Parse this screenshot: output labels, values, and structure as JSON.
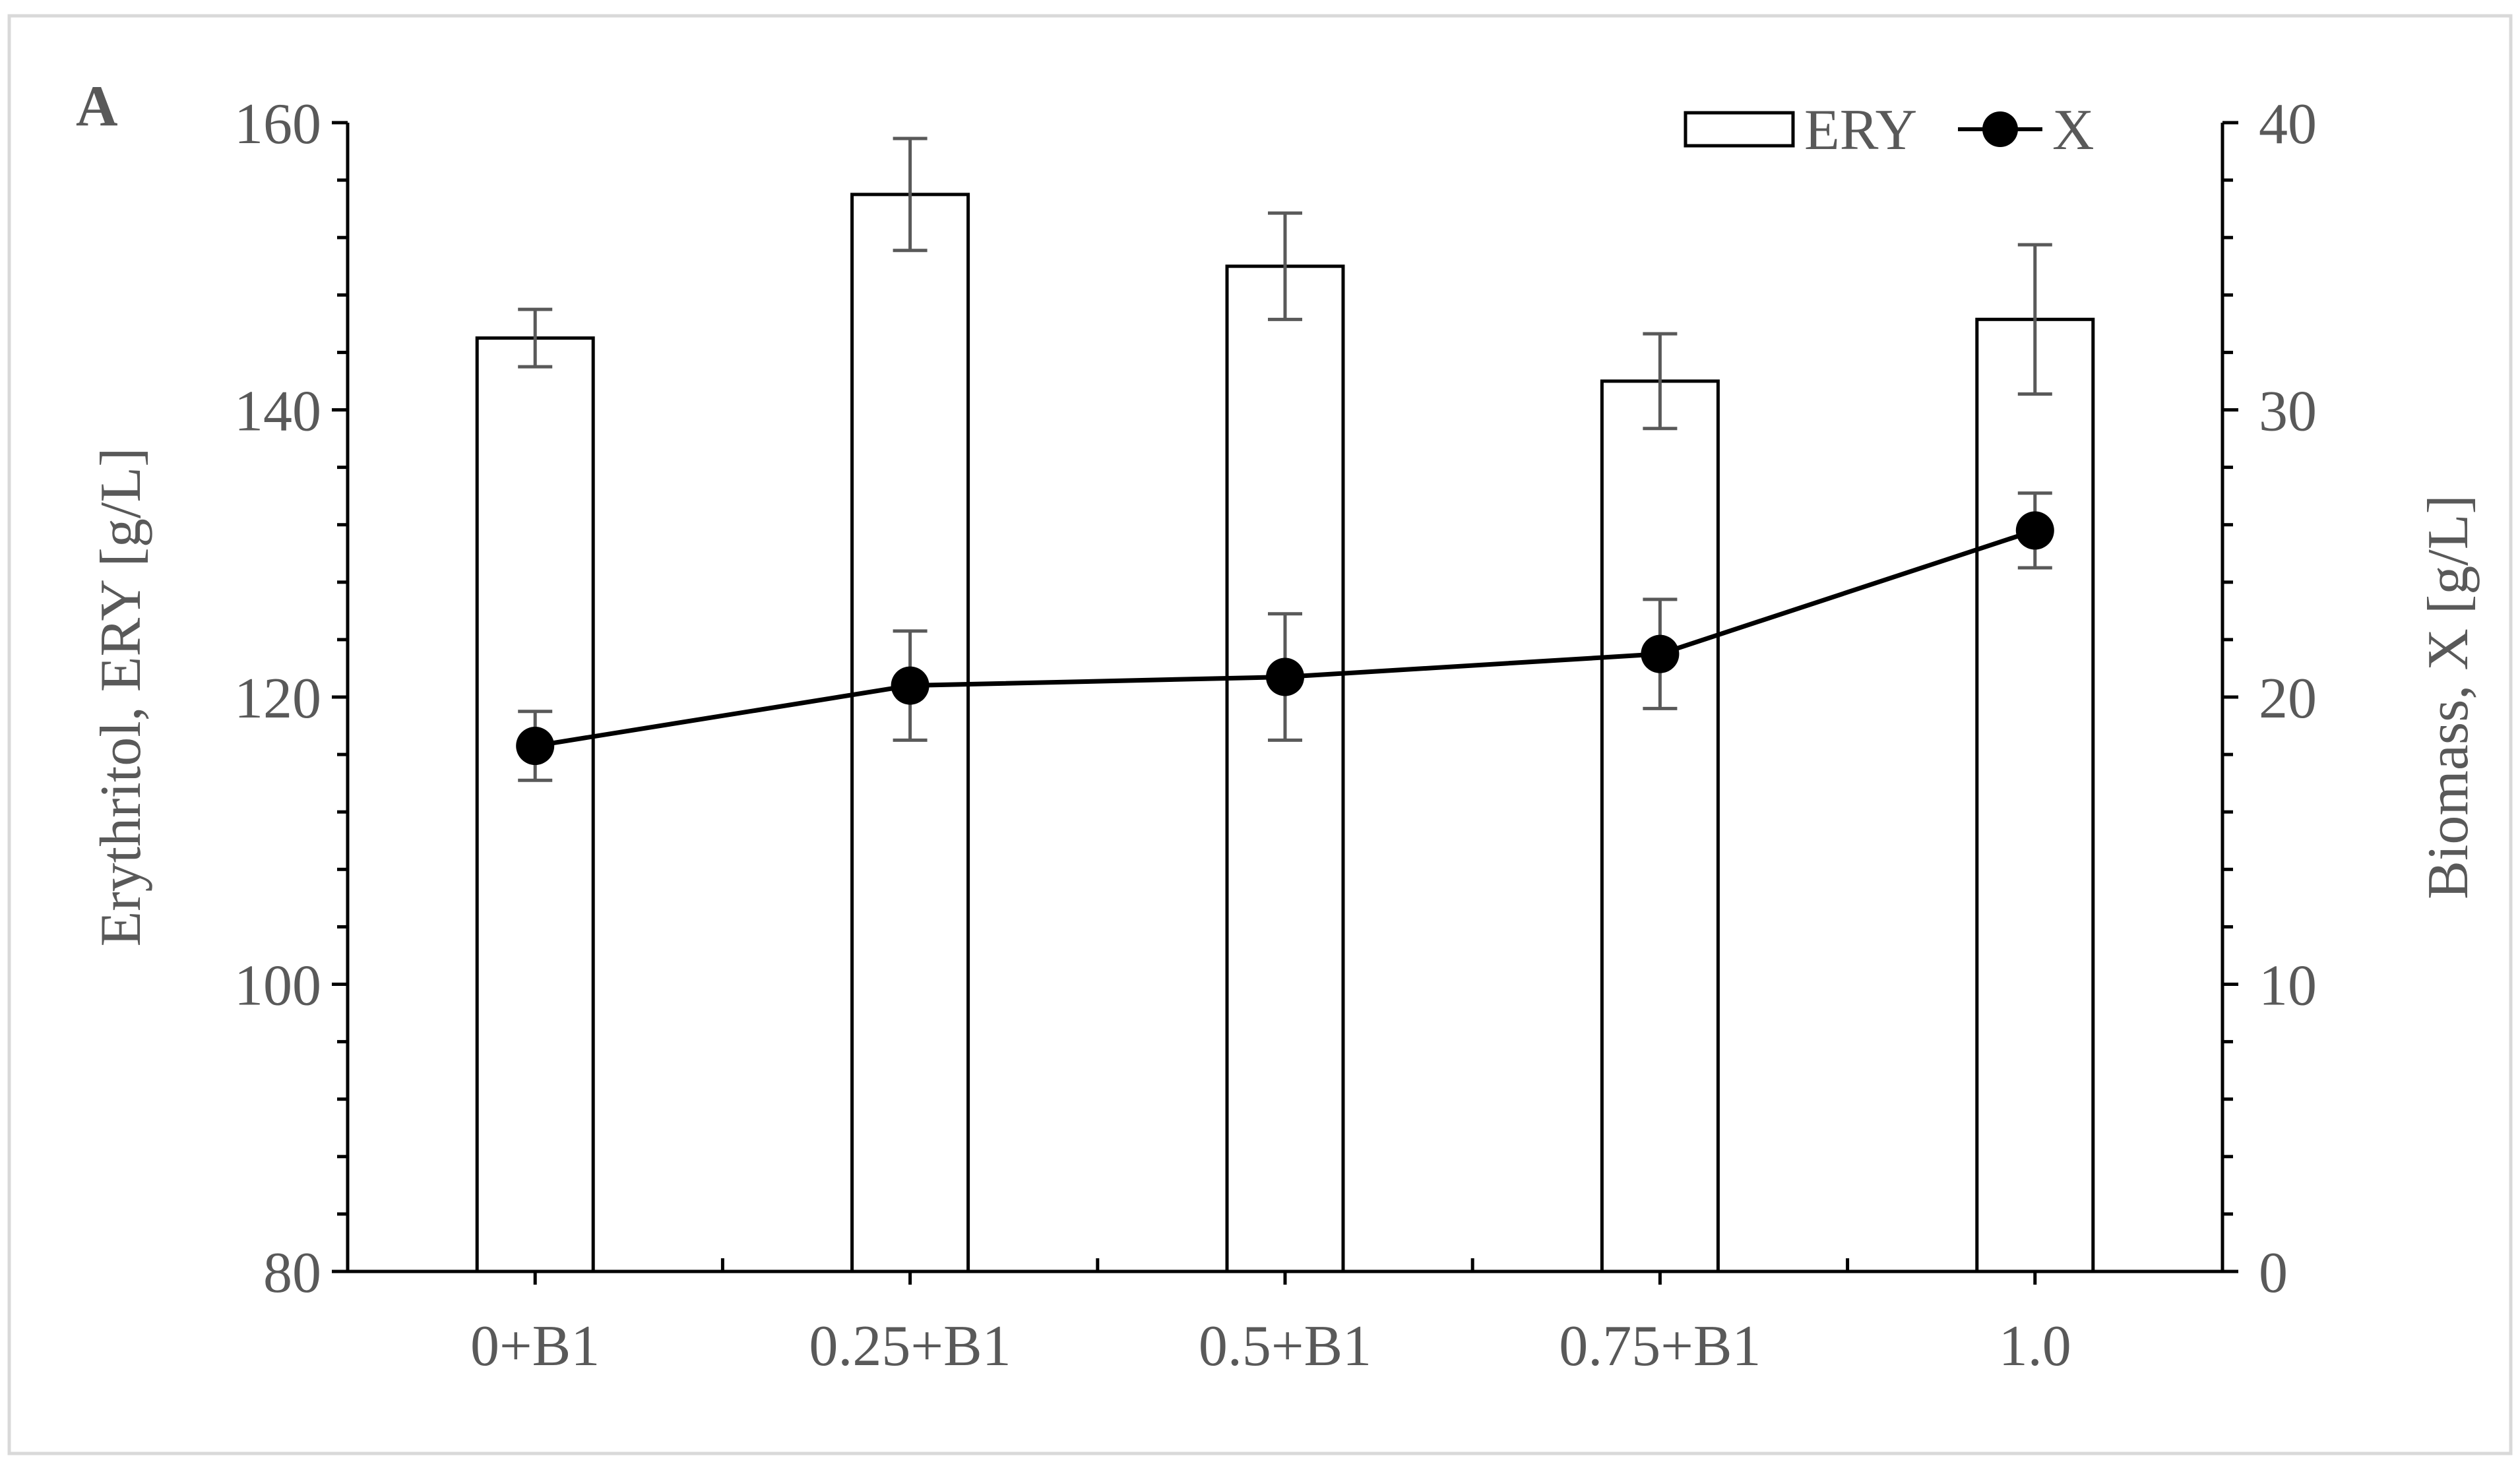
{
  "chart_data": {
    "type": "bar",
    "panel_label": "A",
    "categories": [
      "0+B1",
      "0.25+B1",
      "0.5+B1",
      "0.75+B1",
      "1.0"
    ],
    "series": [
      {
        "name": "ERY",
        "kind": "bar",
        "axis": "left",
        "values": [
          145,
          155,
          150,
          142,
          146.3
        ],
        "errors": [
          2,
          3.9,
          3.7,
          3.3,
          5.2
        ]
      },
      {
        "name": "X",
        "kind": "line",
        "axis": "right",
        "values": [
          18.3,
          20.4,
          20.7,
          21.5,
          25.8
        ],
        "errors": [
          1.2,
          1.9,
          2.2,
          1.9,
          1.3
        ]
      }
    ],
    "ylabel": "Erythritol, ERY [g/L]",
    "y2label": "Biomass, X [g/L]",
    "ylim": [
      80,
      160
    ],
    "y2lim": [
      0,
      40
    ],
    "yticks": [
      80,
      100,
      120,
      140,
      160
    ],
    "y2ticks": [
      0,
      10,
      20,
      30,
      40
    ],
    "grid": false,
    "legend_position": "top-right",
    "colors": {
      "bar_fill": "#ffffff",
      "bar_stroke": "#000000",
      "line": "#000000",
      "marker": "#000000",
      "error_bar": "#595959",
      "axis": "#000000",
      "text": "#595959",
      "frame": "#d9d9d9"
    }
  }
}
